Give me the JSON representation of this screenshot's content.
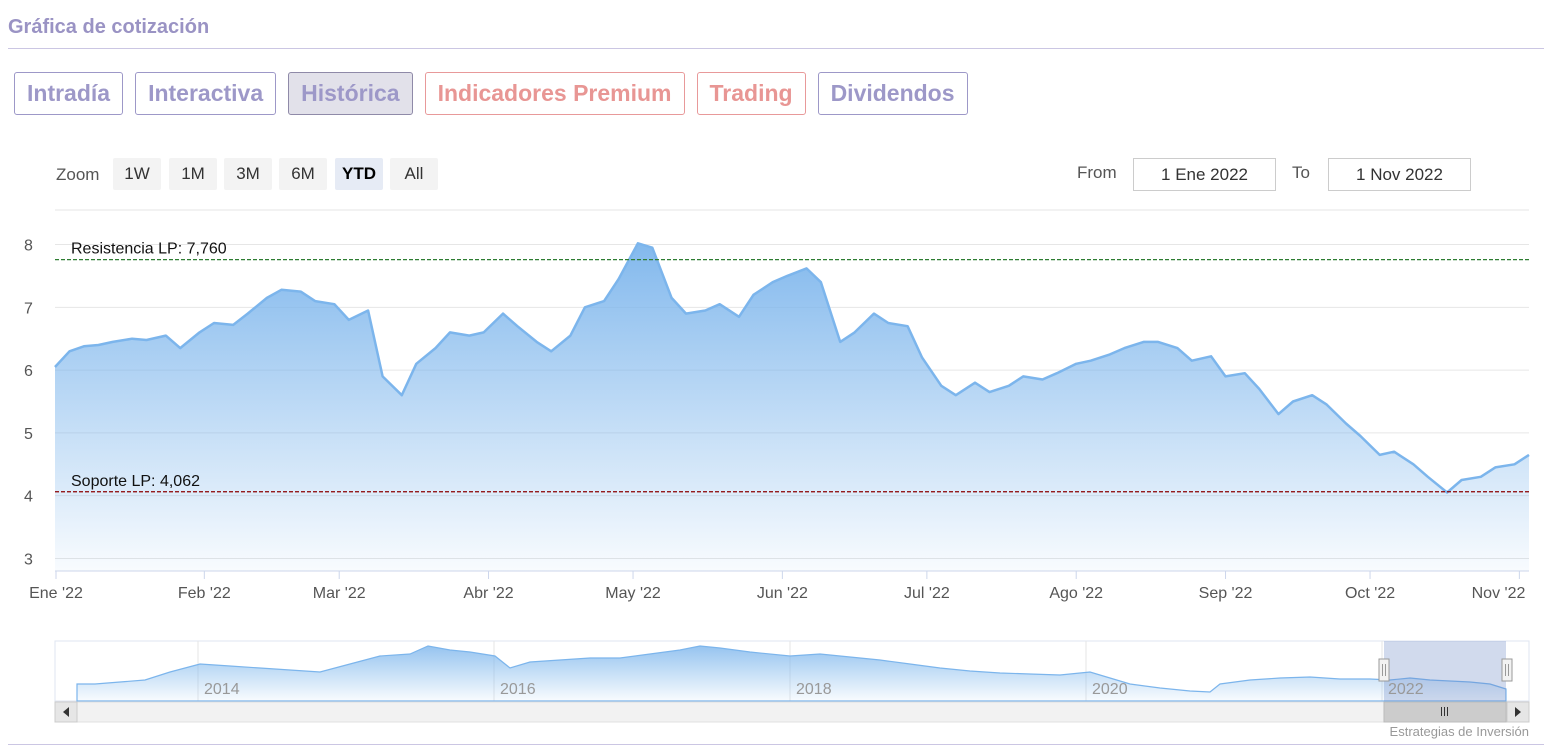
{
  "title": "Gráfica de cotización",
  "tabs": [
    {
      "label": "Intradía",
      "state": "normal"
    },
    {
      "label": "Interactiva",
      "state": "normal"
    },
    {
      "label": "Histórica",
      "state": "active"
    },
    {
      "label": "Indicadores Premium",
      "state": "warm"
    },
    {
      "label": "Trading",
      "state": "warm"
    },
    {
      "label": "Dividendos",
      "state": "normal"
    }
  ],
  "zoom": {
    "label": "Zoom",
    "buttons": [
      "1W",
      "1M",
      "3M",
      "6M",
      "YTD",
      "All"
    ],
    "selected": "YTD"
  },
  "range": {
    "from_label": "From",
    "from_value": "1 Ene 2022",
    "to_label": "To",
    "to_value": "1 Nov 2022"
  },
  "credit": "Estrategias de Inversión",
  "colors": {
    "accent": "#9d98c8",
    "warm": "#e8999a",
    "series_line": "#7cb5ec",
    "resistance": "#2e7d32",
    "support": "#8b0000"
  },
  "chart_data": {
    "type": "area",
    "title": "",
    "xlabel": "",
    "ylabel": "",
    "ylim": [
      2.8,
      8.2
    ],
    "y_ticks": [
      3,
      4,
      5,
      6,
      7,
      8
    ],
    "x_labels": [
      "Ene '22",
      "Feb '22",
      "Mar '22",
      "Abr '22",
      "May '22",
      "Jun '22",
      "Jul '22",
      "Ago '22",
      "Sep '22",
      "Oct '22",
      "Nov '22"
    ],
    "xlim": [
      "2022-01-01",
      "2022-11-03"
    ],
    "grid": true,
    "legend": "none",
    "annotations": [
      {
        "label": "Resistencia LP: 7,760",
        "value": 7.76,
        "style": "dashed",
        "color": "#2e7d32"
      },
      {
        "label": "Soporte LP: 4,062",
        "value": 4.062,
        "style": "dashed",
        "color": "#8b0000"
      }
    ],
    "series": [
      {
        "x": [
          "2022-01-01",
          "2022-01-04",
          "2022-01-07",
          "2022-01-10",
          "2022-01-13",
          "2022-01-17",
          "2022-01-20",
          "2022-01-24",
          "2022-01-27",
          "2022-01-31",
          "2022-02-03",
          "2022-02-07",
          "2022-02-10",
          "2022-02-14",
          "2022-02-17",
          "2022-02-21",
          "2022-02-24",
          "2022-02-28",
          "2022-03-03",
          "2022-03-07",
          "2022-03-10",
          "2022-03-14",
          "2022-03-17",
          "2022-03-21",
          "2022-03-24",
          "2022-03-28",
          "2022-03-31",
          "2022-04-04",
          "2022-04-07",
          "2022-04-11",
          "2022-04-14",
          "2022-04-18",
          "2022-04-21",
          "2022-04-25",
          "2022-04-28",
          "2022-05-02",
          "2022-05-05",
          "2022-05-09",
          "2022-05-12",
          "2022-05-16",
          "2022-05-19",
          "2022-05-23",
          "2022-05-26",
          "2022-05-30",
          "2022-06-02",
          "2022-06-06",
          "2022-06-09",
          "2022-06-13",
          "2022-06-16",
          "2022-06-20",
          "2022-06-23",
          "2022-06-27",
          "2022-06-30",
          "2022-07-04",
          "2022-07-07",
          "2022-07-11",
          "2022-07-14",
          "2022-07-18",
          "2022-07-21",
          "2022-07-25",
          "2022-07-28",
          "2022-08-01",
          "2022-08-04",
          "2022-08-08",
          "2022-08-11",
          "2022-08-15",
          "2022-08-18",
          "2022-08-22",
          "2022-08-25",
          "2022-08-29",
          "2022-09-01",
          "2022-09-05",
          "2022-09-08",
          "2022-09-12",
          "2022-09-15",
          "2022-09-19",
          "2022-09-22",
          "2022-09-26",
          "2022-09-29",
          "2022-10-03",
          "2022-10-06",
          "2022-10-10",
          "2022-10-13",
          "2022-10-17",
          "2022-10-20",
          "2022-10-24",
          "2022-10-27",
          "2022-10-31",
          "2022-11-03"
        ],
        "values": [
          6.05,
          6.3,
          6.38,
          6.4,
          6.45,
          6.5,
          6.48,
          6.55,
          6.35,
          6.6,
          6.75,
          6.72,
          6.9,
          7.15,
          7.28,
          7.25,
          7.1,
          7.05,
          6.8,
          6.95,
          5.9,
          5.6,
          6.1,
          6.35,
          6.6,
          6.55,
          6.6,
          6.9,
          6.7,
          6.45,
          6.3,
          6.55,
          7.0,
          7.1,
          7.45,
          8.02,
          7.95,
          7.15,
          6.9,
          6.95,
          7.05,
          6.85,
          7.2,
          7.4,
          7.5,
          7.62,
          7.4,
          6.45,
          6.6,
          6.9,
          6.75,
          6.7,
          6.2,
          5.75,
          5.6,
          5.8,
          5.65,
          5.75,
          5.9,
          5.85,
          5.95,
          6.1,
          6.15,
          6.25,
          6.35,
          6.45,
          6.45,
          6.35,
          6.15,
          6.22,
          5.9,
          5.95,
          5.7,
          5.3,
          5.5,
          5.6,
          5.45,
          5.15,
          4.95,
          4.65,
          4.7,
          4.5,
          4.3,
          4.05,
          4.25,
          4.3,
          4.45,
          4.5,
          4.65
        ]
      }
    ],
    "navigator": {
      "x_labels": [
        "2014",
        "2016",
        "2018",
        "2020",
        "2022"
      ]
    }
  }
}
